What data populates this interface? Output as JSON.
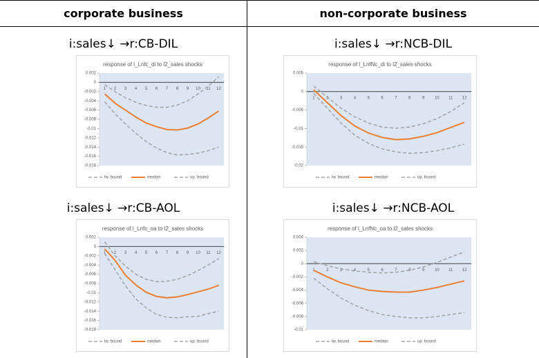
{
  "table": {
    "headers": [
      "corporate business",
      "non-corporate business"
    ]
  },
  "chart_data": [
    {
      "type": "line",
      "heading": "i:sales↓ →r:CB-DIL",
      "title": "response of l_Lnfc_di to l2_sales shocks",
      "x": [
        1,
        2,
        3,
        4,
        5,
        6,
        7,
        8,
        9,
        10,
        11,
        12
      ],
      "ylim": [
        -0.018,
        0.002
      ],
      "yticks": [
        0.002,
        0,
        -0.002,
        -0.004,
        -0.006,
        -0.008,
        -0.01,
        -0.012,
        -0.014,
        -0.016,
        -0.018
      ],
      "series": [
        {
          "name": "lw. bound",
          "color": "#a6a6a6",
          "dashed": true,
          "values": [
            -0.0042,
            -0.0068,
            -0.009,
            -0.011,
            -0.0128,
            -0.0142,
            -0.0152,
            -0.0157,
            -0.0156,
            -0.0153,
            -0.0148,
            -0.014
          ]
        },
        {
          "name": "median",
          "color": "#ed7d31",
          "dashed": false,
          "values": [
            -0.0025,
            -0.0045,
            -0.006,
            -0.0075,
            -0.0088,
            -0.0096,
            -0.0102,
            -0.0103,
            -0.0099,
            -0.009,
            -0.0077,
            -0.0062
          ]
        },
        {
          "name": "up. bound",
          "color": "#a6a6a6",
          "dashed": true,
          "values": [
            -0.0005,
            -0.002,
            -0.0033,
            -0.0043,
            -0.005,
            -0.0054,
            -0.0054,
            -0.0049,
            -0.004,
            -0.0025,
            -0.0008,
            0.0012
          ]
        }
      ]
    },
    {
      "type": "line",
      "heading": "i:sales↓ →r:NCB-DIL",
      "title": "response of l_LnfNc_di to l2_sales shocks",
      "x": [
        1,
        2,
        3,
        4,
        5,
        6,
        7,
        8,
        9,
        10,
        11,
        12
      ],
      "ylim": [
        -0.02,
        0.005
      ],
      "yticks": [
        0.005,
        0,
        -0.005,
        -0.01,
        -0.015,
        -0.02
      ],
      "series": [
        {
          "name": "lw. bound",
          "color": "#a6a6a6",
          "dashed": true,
          "values": [
            -0.0005,
            -0.0045,
            -0.0085,
            -0.0118,
            -0.014,
            -0.0155,
            -0.0163,
            -0.0167,
            -0.0165,
            -0.016,
            -0.0152,
            -0.0142
          ]
        },
        {
          "name": "median",
          "color": "#ed7d31",
          "dashed": false,
          "values": [
            0.0005,
            -0.003,
            -0.0065,
            -0.0093,
            -0.0112,
            -0.0124,
            -0.013,
            -0.0128,
            -0.0121,
            -0.0111,
            -0.0097,
            -0.0083
          ]
        },
        {
          "name": "up. bound",
          "color": "#a6a6a6",
          "dashed": true,
          "values": [
            0.0015,
            -0.0015,
            -0.0045,
            -0.0068,
            -0.0085,
            -0.0096,
            -0.0099,
            -0.0096,
            -0.0087,
            -0.0073,
            -0.0054,
            -0.003
          ]
        }
      ]
    },
    {
      "type": "line",
      "heading": "i:sales↓ →r:CB-AOL",
      "title": "response of l_Lnfc_oa to l2_sales shocks",
      "x": [
        1,
        2,
        3,
        4,
        5,
        6,
        7,
        8,
        9,
        10,
        11,
        12
      ],
      "ylim": [
        -0.018,
        0.002
      ],
      "yticks": [
        0.002,
        0,
        -0.002,
        -0.004,
        -0.006,
        -0.008,
        -0.01,
        -0.012,
        -0.014,
        -0.016,
        -0.018
      ],
      "series": [
        {
          "name": "lw. bound",
          "color": "#a6a6a6",
          "dashed": true,
          "values": [
            -0.0015,
            -0.005,
            -0.0085,
            -0.0113,
            -0.0133,
            -0.0147,
            -0.0153,
            -0.0154,
            -0.0152,
            -0.0151,
            -0.0145,
            -0.014
          ]
        },
        {
          "name": "median",
          "color": "#ed7d31",
          "dashed": false,
          "values": [
            -0.0005,
            -0.003,
            -0.0062,
            -0.0083,
            -0.0099,
            -0.0108,
            -0.0111,
            -0.0109,
            -0.0104,
            -0.0098,
            -0.0092,
            -0.0084
          ]
        },
        {
          "name": "up. bound",
          "color": "#a6a6a6",
          "dashed": true,
          "values": [
            0.001,
            -0.002,
            -0.0042,
            -0.006,
            -0.0071,
            -0.0076,
            -0.0075,
            -0.0071,
            -0.0063,
            -0.0052,
            -0.004,
            -0.0026
          ]
        }
      ]
    },
    {
      "type": "line",
      "heading": "i:sales↓ →r:NCB-AOL",
      "title": "response of l_LnfNc_oa to l2_sales shocks",
      "x": [
        1,
        2,
        3,
        4,
        5,
        6,
        7,
        8,
        9,
        10,
        11,
        12
      ],
      "ylim": [
        -0.01,
        0.004
      ],
      "yticks": [
        0.004,
        0.002,
        0,
        -0.002,
        -0.004,
        -0.006,
        -0.008,
        -0.01
      ],
      "series": [
        {
          "name": "lw. bound",
          "color": "#a6a6a6",
          "dashed": true,
          "values": [
            -0.0022,
            -0.0038,
            -0.0052,
            -0.0063,
            -0.0071,
            -0.0077,
            -0.008,
            -0.0082,
            -0.0082,
            -0.008,
            -0.0077,
            -0.0074
          ]
        },
        {
          "name": "median",
          "color": "#ed7d31",
          "dashed": false,
          "values": [
            -0.001,
            -0.002,
            -0.0029,
            -0.0035,
            -0.004,
            -0.0042,
            -0.0043,
            -0.0043,
            -0.004,
            -0.0036,
            -0.0031,
            -0.0026
          ]
        },
        {
          "name": "up. bound",
          "color": "#a6a6a6",
          "dashed": true,
          "values": [
            0.0003,
            -0.0003,
            -0.0008,
            -0.0011,
            -0.0013,
            -0.0014,
            -0.0013,
            -0.001,
            -0.0005,
            0.0002,
            0.001,
            0.0018
          ]
        }
      ]
    }
  ]
}
